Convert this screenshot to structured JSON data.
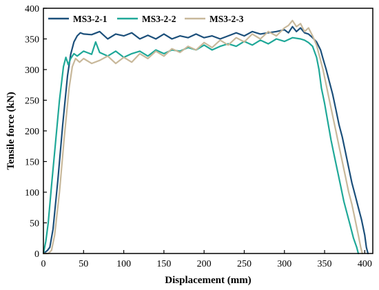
{
  "chart_data": {
    "type": "line",
    "xlabel": "Displacement (mm)",
    "ylabel": "Tensile force (kN)",
    "xlim": [
      0,
      410
    ],
    "ylim": [
      0,
      400
    ],
    "xticks": [
      0,
      50,
      100,
      150,
      200,
      250,
      300,
      350,
      400
    ],
    "yticks": [
      0,
      50,
      100,
      150,
      200,
      250,
      300,
      350,
      400
    ],
    "grid": false,
    "legend": "top-left",
    "series": [
      {
        "name": "MS3-2-1",
        "color": "#1b4f7a",
        "x": [
          0,
          5,
          8,
          12,
          18,
          24,
          30,
          34,
          38,
          42,
          46,
          50,
          60,
          70,
          80,
          90,
          100,
          110,
          120,
          130,
          140,
          150,
          160,
          170,
          180,
          190,
          200,
          210,
          220,
          230,
          240,
          250,
          260,
          270,
          280,
          290,
          300,
          305,
          310,
          315,
          320,
          325,
          330,
          335,
          340,
          345,
          348,
          352,
          356,
          360,
          364,
          368,
          372,
          376,
          380,
          384,
          388,
          392,
          396,
          400,
          402,
          404
        ],
        "y": [
          0,
          5,
          10,
          40,
          120,
          210,
          290,
          325,
          345,
          355,
          360,
          358,
          357,
          362,
          350,
          358,
          355,
          360,
          350,
          356,
          350,
          358,
          350,
          355,
          352,
          358,
          352,
          355,
          350,
          355,
          360,
          355,
          362,
          358,
          360,
          362,
          365,
          360,
          370,
          362,
          368,
          360,
          358,
          352,
          345,
          332,
          318,
          300,
          280,
          260,
          235,
          210,
          190,
          165,
          140,
          115,
          95,
          75,
          55,
          30,
          10,
          0
        ]
      },
      {
        "name": "MS3-2-2",
        "color": "#1fa898",
        "x": [
          0,
          3,
          6,
          10,
          15,
          20,
          25,
          28,
          31,
          34,
          38,
          42,
          50,
          60,
          65,
          70,
          80,
          90,
          100,
          110,
          120,
          130,
          140,
          150,
          160,
          170,
          180,
          190,
          200,
          210,
          220,
          230,
          240,
          250,
          260,
          270,
          280,
          290,
          300,
          310,
          320,
          325,
          330,
          335,
          340,
          343,
          346,
          350,
          354,
          358,
          362,
          366,
          370,
          374,
          378,
          382,
          386,
          390,
          392
        ],
        "y": [
          0,
          20,
          50,
          110,
          180,
          250,
          305,
          320,
          308,
          318,
          326,
          322,
          330,
          325,
          345,
          328,
          322,
          330,
          320,
          326,
          330,
          322,
          332,
          326,
          332,
          330,
          336,
          332,
          340,
          332,
          338,
          342,
          338,
          346,
          340,
          348,
          342,
          350,
          346,
          352,
          350,
          348,
          344,
          338,
          320,
          300,
          270,
          245,
          215,
          185,
          160,
          135,
          110,
          85,
          65,
          45,
          25,
          10,
          0
        ]
      },
      {
        "name": "MS3-2-3",
        "color": "#c8b89a",
        "x": [
          0,
          6,
          10,
          14,
          20,
          26,
          32,
          36,
          40,
          45,
          50,
          60,
          70,
          80,
          90,
          100,
          110,
          120,
          130,
          140,
          150,
          160,
          170,
          180,
          190,
          200,
          210,
          220,
          230,
          240,
          250,
          260,
          270,
          280,
          290,
          300,
          305,
          310,
          315,
          320,
          325,
          330,
          335,
          340,
          344,
          348,
          352,
          356,
          360,
          364,
          368,
          372,
          376,
          380,
          384,
          388,
          392,
          395,
          397
        ],
        "y": [
          0,
          0,
          5,
          30,
          100,
          190,
          270,
          305,
          318,
          312,
          318,
          310,
          315,
          322,
          310,
          320,
          312,
          326,
          318,
          330,
          322,
          334,
          328,
          338,
          332,
          344,
          336,
          348,
          340,
          352,
          345,
          358,
          350,
          362,
          355,
          368,
          372,
          380,
          370,
          375,
          362,
          368,
          355,
          340,
          320,
          300,
          275,
          250,
          225,
          200,
          175,
          150,
          125,
          100,
          80,
          55,
          30,
          10,
          0
        ]
      }
    ]
  }
}
